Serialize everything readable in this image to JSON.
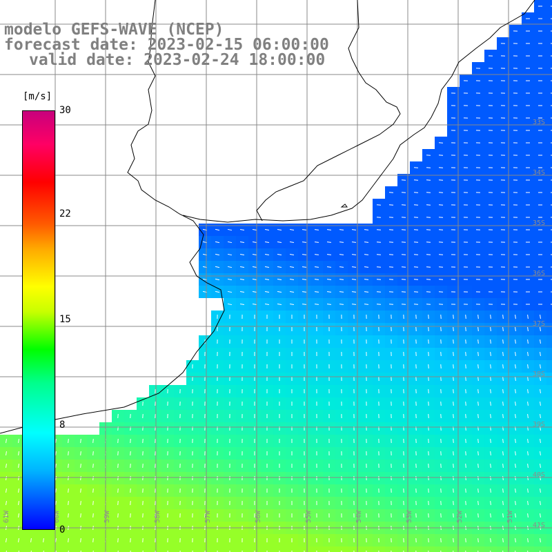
{
  "title": {
    "line1": "modelo GEFS-WAVE (NCEP)",
    "line2": "forecast date: 2023-02-15 06:00:00",
    "line3": "valid date: 2023-02-24 18:00:00"
  },
  "colorbar": {
    "unit": "[m/s]",
    "ticks": [
      "30",
      "22",
      "15",
      "8",
      "0"
    ],
    "colors": [
      "#0000ff",
      "#00b4ff",
      "#00ffff",
      "#00ff8c",
      "#00ff00",
      "#c8ff00",
      "#ffff00",
      "#ffaa00",
      "#ff5a00",
      "#ff0000",
      "#ff0064",
      "#c8007d"
    ]
  },
  "grid": {
    "lat_labels": [
      "33S",
      "34S",
      "35S",
      "36S",
      "37S",
      "38S",
      "39S",
      "40S",
      "41S"
    ],
    "lon_labels": [
      "61W",
      "60W",
      "59W",
      "58W",
      "57W",
      "56W",
      "55W",
      "54W",
      "53W",
      "52W",
      "51W"
    ]
  }
}
